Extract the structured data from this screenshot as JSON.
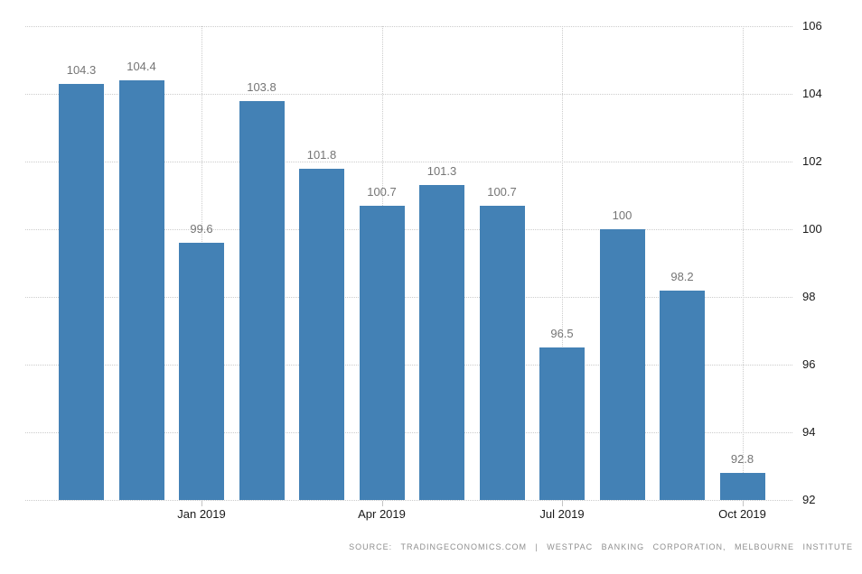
{
  "source": {
    "text": "SOURCE: TRADINGECONOMICS.COM | WESTPAC BANKING CORPORATION, MELBOURNE INSTITUTE"
  },
  "chart_data": {
    "type": "bar",
    "title": "",
    "xlabel": "",
    "ylabel": "",
    "values": [
      104.3,
      104.4,
      99.6,
      103.8,
      101.8,
      100.7,
      101.3,
      100.7,
      96.5,
      100,
      98.2,
      92.8
    ],
    "value_labels": [
      "104.3",
      "104.4",
      "99.6",
      "103.8",
      "101.8",
      "100.7",
      "101.3",
      "100.7",
      "96.5",
      "100",
      "98.2",
      "92.8"
    ],
    "x_ticks": [
      {
        "bar_index": 2,
        "label": "Jan 2019"
      },
      {
        "bar_index": 5,
        "label": "Apr 2019"
      },
      {
        "bar_index": 8,
        "label": "Jul 2019"
      },
      {
        "bar_index": 11,
        "label": "Oct 2019"
      }
    ],
    "y_ticks": [
      106,
      104,
      102,
      100,
      98,
      96,
      94,
      92
    ],
    "ylim": [
      92,
      106
    ],
    "y_axis_side": "right",
    "grid_style": "dotted",
    "legend": "none",
    "bar_color": "#4381b5",
    "value_label_color": "#757575",
    "axis_label_color": "#1a1a1a",
    "gridline_color": "#cccccc"
  }
}
